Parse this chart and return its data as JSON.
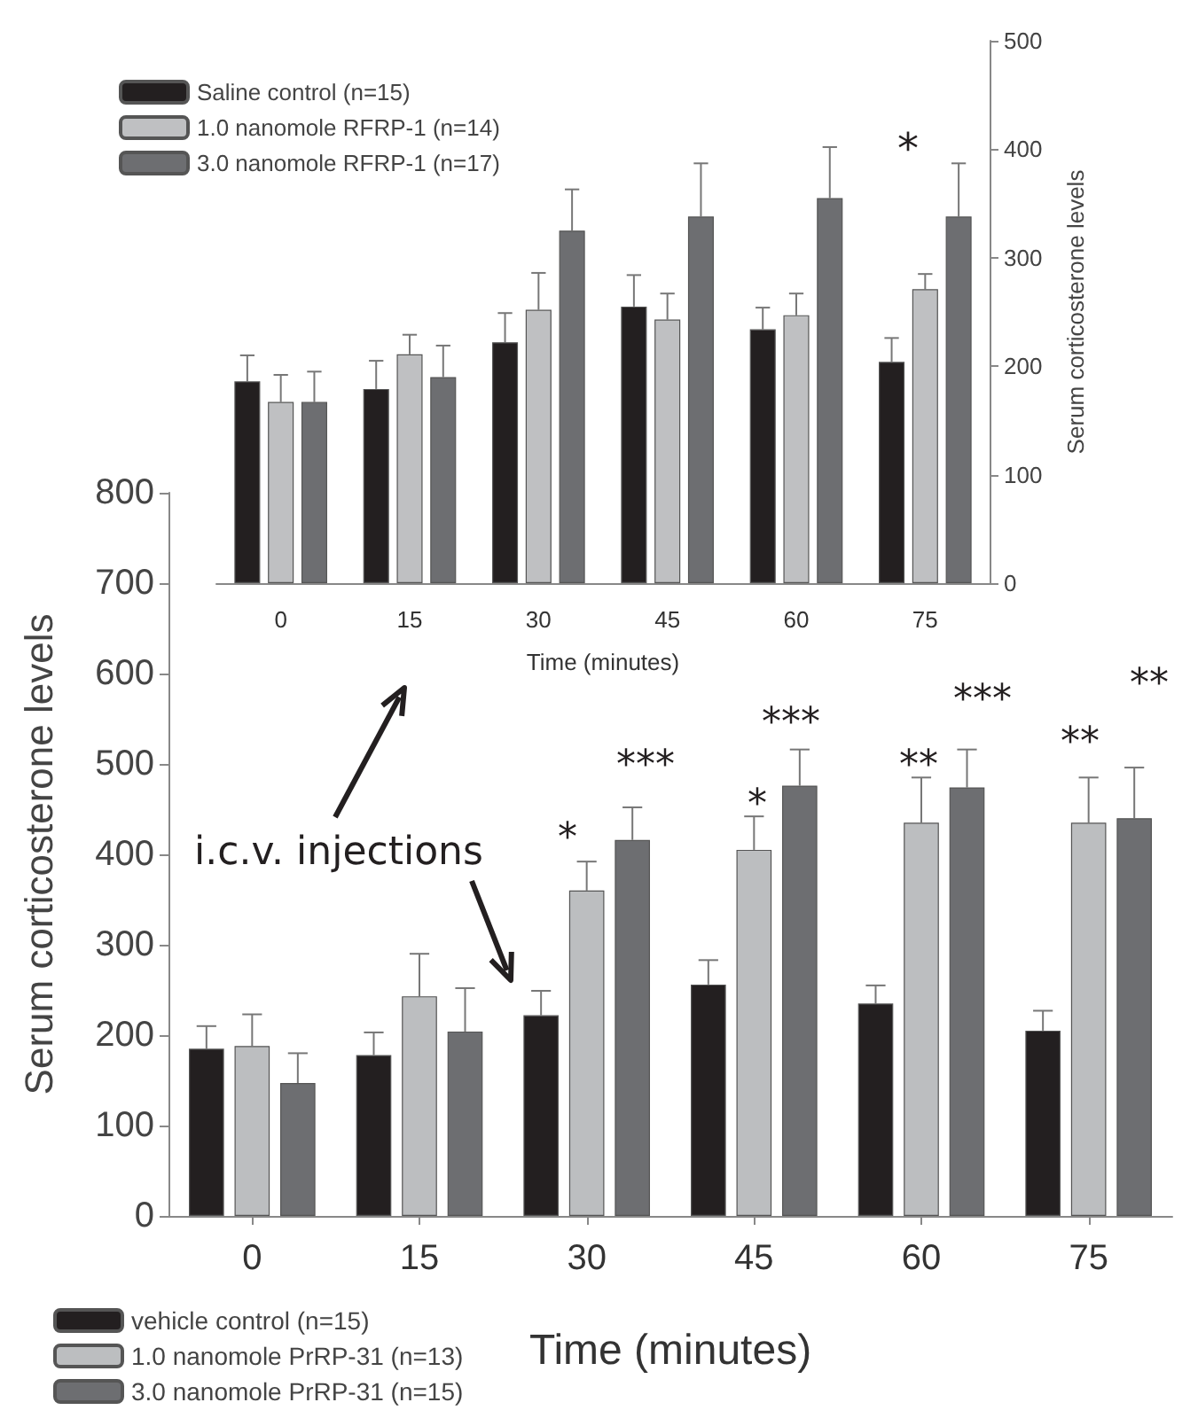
{
  "chart_data": [
    {
      "type": "bar",
      "xlabel": "Time (minutes)",
      "y2label": "Serum corticosterone levels",
      "categories": [
        "0",
        "15",
        "30",
        "45",
        "60",
        "75"
      ],
      "series": [
        {
          "name": "Saline control (n=15)",
          "color": "#231f20",
          "axis": "y2",
          "values": [
            186,
            179,
            222,
            255,
            234,
            204
          ],
          "errors": [
            [
              186,
              210
            ],
            [
              179,
              205
            ],
            [
              222,
              249
            ],
            [
              255,
              284
            ],
            [
              234,
              254
            ],
            [
              204,
              226
            ]
          ]
        },
        {
          "name": "1.0 nanomole RFRP-1 (n=14)",
          "color": "#bfc0c2",
          "axis": "y2",
          "values": [
            167,
            211,
            252,
            243,
            247,
            271
          ],
          "errors": [
            [
              167,
              192
            ],
            [
              211,
              229
            ],
            [
              252,
              286
            ],
            [
              243,
              267
            ],
            [
              247,
              267
            ],
            [
              271,
              285
            ]
          ]
        },
        {
          "name": "3.0 nanomole RFRP-1 (n=17)",
          "color": "#6d6e71",
          "axis": "y2",
          "values": [
            167,
            190,
            325,
            338,
            355,
            338
          ],
          "errors": [
            [
              167,
              195
            ],
            [
              190,
              219
            ],
            [
              325,
              363
            ],
            [
              338,
              387
            ],
            [
              355,
              402
            ],
            [
              338,
              387
            ]
          ]
        }
      ],
      "y2lim": [
        0,
        500
      ],
      "y2ticks": [
        0,
        100,
        200,
        300,
        400,
        500
      ],
      "grid": false,
      "legend": "top left",
      "annotations": [
        "*"
      ]
    },
    {
      "type": "bar",
      "xlabel": "Time (minutes)",
      "ylabel": "Serum corticosterone levels",
      "categories": [
        "0",
        "15",
        "30",
        "45",
        "60",
        "75"
      ],
      "series": [
        {
          "name": "vehicle control (n=15)",
          "color": "#231f20",
          "values": [
            185,
            178,
            222,
            256,
            235,
            205
          ],
          "errors": [
            [
              185,
              210
            ],
            [
              178,
              203
            ],
            [
              222,
              249
            ],
            [
              256,
              283
            ],
            [
              235,
              255
            ],
            [
              205,
              227
            ]
          ]
        },
        {
          "name": "1.0 nanomole PrRP-31 (n=13)",
          "color": "#bcbec0",
          "values": [
            188,
            243,
            360,
            405,
            435,
            435
          ],
          "errors": [
            [
              188,
              223
            ],
            [
              243,
              290
            ],
            [
              360,
              392
            ],
            [
              405,
              442
            ],
            [
              435,
              485
            ],
            [
              435,
              485
            ]
          ]
        },
        {
          "name": "3.0 nanomole PrRP-31 (n=15)",
          "color": "#6d6e71",
          "values": [
            147,
            204,
            416,
            476,
            474,
            440
          ],
          "errors": [
            [
              147,
              180
            ],
            [
              204,
              252
            ],
            [
              416,
              452
            ],
            [
              476,
              516
            ],
            [
              474,
              516
            ],
            [
              440,
              496
            ]
          ]
        }
      ],
      "ylim": [
        0,
        800
      ],
      "yticks": [
        0,
        100,
        200,
        300,
        400,
        500,
        600,
        700,
        800
      ],
      "grid": false,
      "legend": "bottom left",
      "annotations": [
        "i.c.v. injections",
        "*",
        "***",
        "*",
        "***",
        "**",
        "***",
        "**",
        "**"
      ]
    }
  ]
}
